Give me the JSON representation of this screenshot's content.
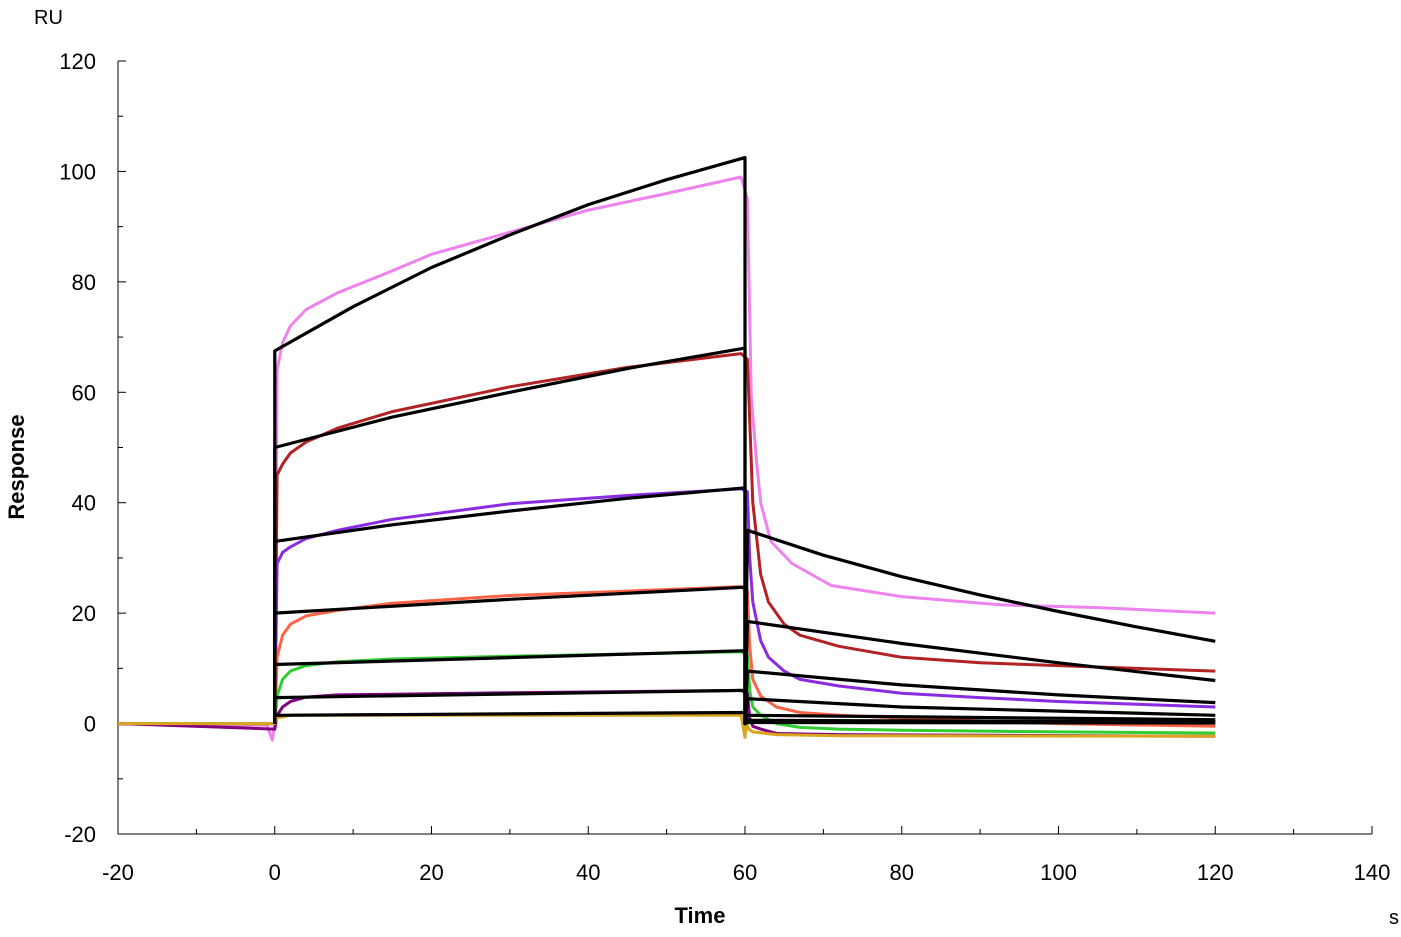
{
  "chart_data": {
    "type": "line",
    "title": "",
    "xlabel": "Time",
    "ylabel": "Response",
    "x_unit": "s",
    "y_unit": "RU",
    "xlim": [
      -20,
      140
    ],
    "ylim": [
      -20,
      120
    ],
    "x_ticks": [
      -20,
      0,
      20,
      40,
      60,
      80,
      100,
      120,
      140
    ],
    "y_ticks": [
      -20,
      0,
      20,
      40,
      60,
      80,
      100,
      120
    ],
    "grid": false,
    "legend": "none",
    "series": [
      {
        "color": "#EE82EE",
        "kind": "measured",
        "x": [
          -20,
          -1,
          -0.3,
          0,
          0.3,
          1,
          2,
          4,
          8,
          15,
          20,
          30,
          40,
          50,
          59.5,
          60.3,
          60.8,
          61.5,
          62,
          63.3,
          66,
          71,
          80,
          92.7,
          105,
          120
        ],
        "y": [
          0,
          -0.3,
          -3,
          0,
          64,
          69,
          72,
          75,
          78,
          82,
          85,
          89,
          93,
          96,
          99,
          95,
          59,
          47,
          40,
          33,
          29,
          25,
          23,
          21.5,
          21,
          20
        ]
      },
      {
        "color": "#B22222",
        "kind": "measured",
        "x": [
          -20,
          0,
          0.3,
          1,
          2,
          4,
          8,
          15,
          30,
          45,
          59.5,
          60.3,
          60.6,
          61,
          62,
          63,
          65,
          67,
          72,
          80,
          90,
          100,
          120
        ],
        "y": [
          0,
          0,
          45,
          47,
          49,
          51,
          53.5,
          56.5,
          61,
          64.5,
          67,
          66,
          55,
          40,
          27,
          22,
          18,
          16,
          14,
          12,
          11,
          10.5,
          9.5
        ]
      },
      {
        "color": "#8A2BE2",
        "kind": "measured",
        "x": [
          -20,
          0,
          0.3,
          1,
          2,
          4,
          8,
          15,
          30,
          45,
          59.5,
          60.3,
          60.6,
          61,
          62,
          63,
          65,
          67,
          72,
          80,
          90,
          100,
          120
        ],
        "y": [
          0,
          0,
          29,
          31,
          32,
          33.5,
          35,
          37,
          39.8,
          41.3,
          42.5,
          42,
          30,
          22,
          15,
          12,
          9.5,
          8,
          6.8,
          5.5,
          4.7,
          4,
          3
        ]
      },
      {
        "color": "#FF6347",
        "kind": "measured",
        "x": [
          -20,
          0,
          0.3,
          1,
          2,
          4,
          8,
          15,
          30,
          45,
          59.5,
          60.3,
          60.6,
          61,
          62,
          64,
          67,
          72,
          80,
          100,
          120
        ],
        "y": [
          0,
          0,
          12,
          16,
          18,
          19.5,
          20.5,
          21.8,
          23.2,
          24,
          24.8,
          24,
          14,
          8,
          5,
          3,
          2,
          1.5,
          1,
          0,
          -0.5
        ]
      },
      {
        "color": "#32CD32",
        "kind": "measured",
        "x": [
          -20,
          0,
          0.3,
          1,
          2,
          4,
          8,
          15,
          30,
          45,
          59.5,
          60.3,
          60.6,
          61,
          62,
          64,
          67,
          72,
          80,
          100,
          120
        ],
        "y": [
          0,
          0,
          5,
          8,
          9.5,
          10.5,
          11.2,
          11.7,
          12.2,
          12.6,
          13,
          12.5,
          6,
          3,
          1.5,
          0,
          -0.7,
          -1,
          -1.2,
          -1.5,
          -1.7
        ]
      },
      {
        "color": "#800080",
        "kind": "measured",
        "x": [
          -20,
          0,
          0.3,
          1,
          2,
          4,
          8,
          30,
          59.5,
          60.3,
          60.6,
          61,
          62,
          64,
          72,
          120
        ],
        "y": [
          0,
          -1,
          1.5,
          3,
          4,
          4.8,
          5.2,
          5.6,
          6,
          5.5,
          1,
          -0.5,
          -1,
          -1.8,
          -2,
          -2.3
        ]
      },
      {
        "color": "#DAA520",
        "kind": "measured",
        "x": [
          -20,
          0,
          0.3,
          2,
          30,
          59.5,
          60,
          60.2,
          60.5,
          61,
          64,
          72,
          120
        ],
        "y": [
          0,
          0,
          1,
          1.5,
          1.5,
          1.5,
          -2.5,
          0,
          -1,
          -1.5,
          -2,
          -2.2,
          -2.3
        ]
      },
      {
        "color": "#000000",
        "kind": "fit",
        "x": [
          0,
          0,
          10,
          20,
          30,
          40,
          50,
          60,
          60,
          60.3,
          70,
          80,
          90,
          100,
          110,
          120
        ],
        "y": [
          0,
          67.5,
          75.5,
          82.6,
          88.5,
          94,
          98.5,
          102.5,
          0,
          35,
          30.5,
          26.6,
          23.3,
          20.3,
          17.5,
          14.9
        ]
      },
      {
        "color": "#000000",
        "kind": "fit",
        "x": [
          0,
          0,
          15,
          30,
          45,
          60,
          60,
          60.3,
          80,
          100,
          120
        ],
        "y": [
          0,
          50,
          55.5,
          60,
          64.3,
          68,
          0,
          18.5,
          14.5,
          11,
          7.8
        ]
      },
      {
        "color": "#000000",
        "kind": "fit",
        "x": [
          0,
          0,
          15,
          30,
          45,
          60,
          60,
          60.3,
          80,
          100,
          120
        ],
        "y": [
          0,
          33,
          36,
          38.5,
          40.8,
          42.7,
          0,
          9.5,
          7,
          5.2,
          3.8
        ]
      },
      {
        "color": "#000000",
        "kind": "fit",
        "x": [
          0,
          0,
          30,
          60,
          60,
          60.3,
          80,
          120
        ],
        "y": [
          0,
          20,
          22.5,
          24.7,
          0,
          4.5,
          3,
          1.5
        ]
      },
      {
        "color": "#000000",
        "kind": "fit",
        "x": [
          0,
          0,
          60,
          60,
          60.3,
          120
        ],
        "y": [
          0,
          10.7,
          13.2,
          0,
          1.5,
          0.7
        ]
      },
      {
        "color": "#000000",
        "kind": "fit",
        "x": [
          0,
          0,
          60,
          60,
          60.3,
          120
        ],
        "y": [
          0,
          4.7,
          6.0,
          0,
          0.6,
          0.3
        ]
      },
      {
        "color": "#000000",
        "kind": "fit",
        "x": [
          0,
          0,
          60,
          60,
          60.3,
          120
        ],
        "y": [
          0,
          1.5,
          2.0,
          0,
          0.2,
          0.1
        ]
      }
    ]
  }
}
